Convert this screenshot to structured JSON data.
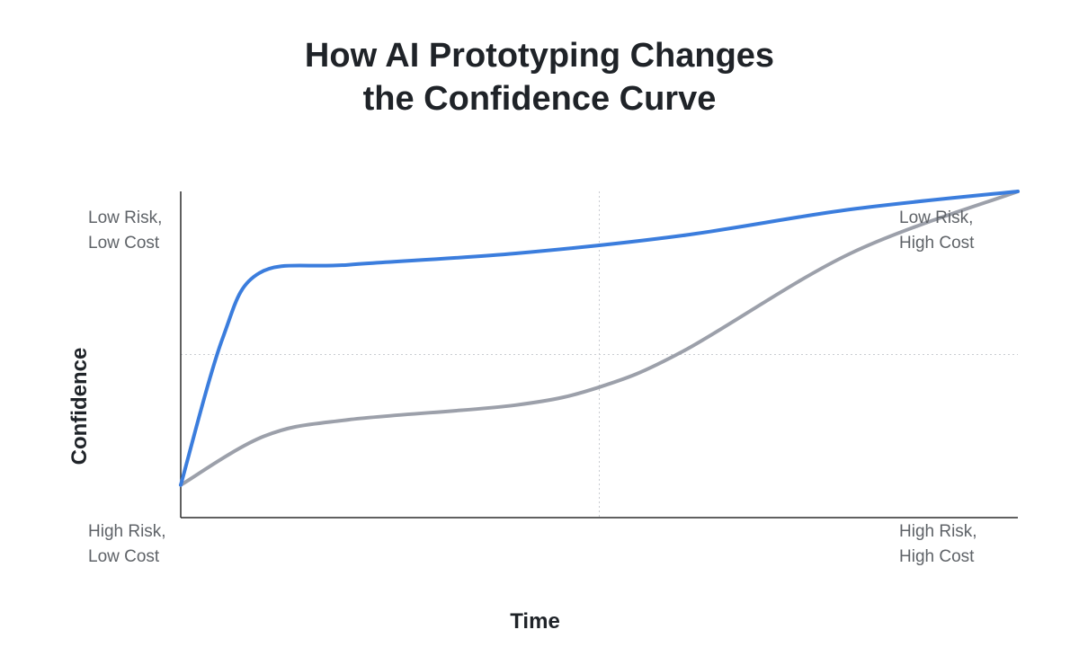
{
  "chart_data": {
    "type": "line",
    "title_lines": [
      "How AI Prototyping Changes",
      "the Confidence Curve"
    ],
    "xlabel": "Time",
    "ylabel": "Confidence",
    "xlim": [
      0,
      1
    ],
    "ylim": [
      0,
      1
    ],
    "grid": true,
    "gridlines": {
      "x": [
        0.5
      ],
      "y": [
        0.5
      ]
    },
    "annotations": [
      {
        "lines": [
          "Low Risk,",
          "Low Cost"
        ],
        "position": "top-left"
      },
      {
        "lines": [
          "Low Risk,",
          "High Cost"
        ],
        "position": "top-right"
      },
      {
        "lines": [
          "High Risk,",
          "Low Cost"
        ],
        "position": "bottom-left"
      },
      {
        "lines": [
          "High Risk,",
          "High Cost"
        ],
        "position": "bottom-right"
      }
    ],
    "series": [
      {
        "color": "#3b7ddd",
        "x": [
          0,
          0.05,
          0.094,
          0.2,
          0.4,
          0.6,
          0.8,
          1.0
        ],
        "y": [
          0.1,
          0.55,
          0.75,
          0.775,
          0.81,
          0.865,
          0.945,
          1.0
        ]
      },
      {
        "color": "#9ca0aa",
        "x": [
          0,
          0.1,
          0.2,
          0.4,
          0.5,
          0.6,
          0.8,
          1.0
        ],
        "y": [
          0.1,
          0.25,
          0.3,
          0.345,
          0.4,
          0.51,
          0.81,
          1.0
        ]
      }
    ]
  }
}
